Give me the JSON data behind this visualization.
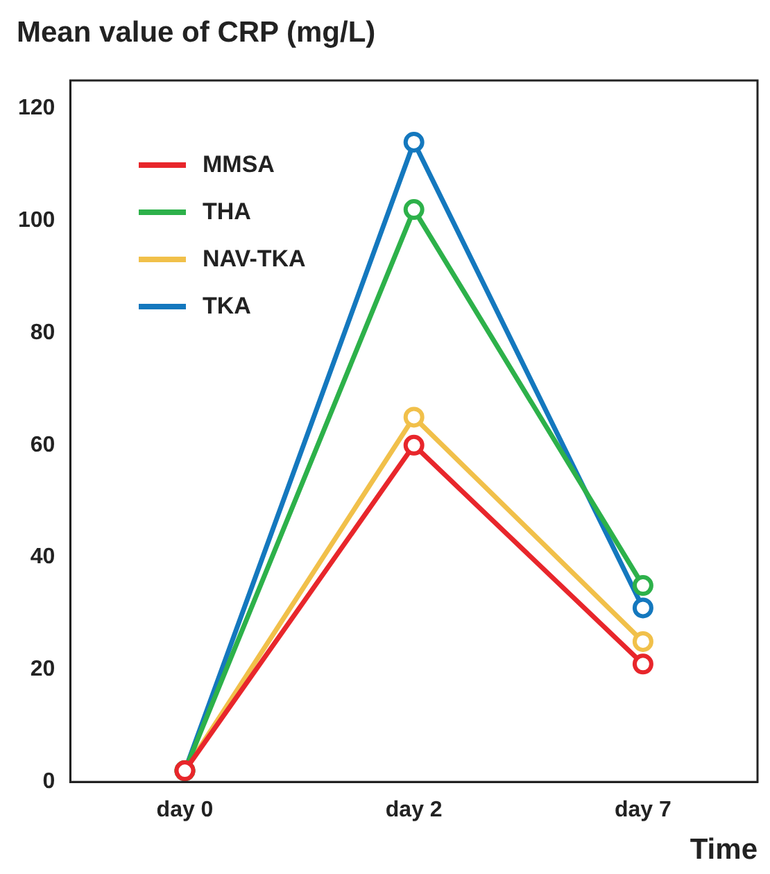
{
  "chart_data": {
    "type": "line",
    "title": "Mean value of CRP (mg/L)",
    "xlabel": "Time",
    "categories": [
      "day 0",
      "day 2",
      "day 7"
    ],
    "series": [
      {
        "name": "MMSA",
        "color": "#e8262b",
        "values": [
          2,
          60,
          21
        ]
      },
      {
        "name": "THA",
        "color": "#2db14a",
        "values": [
          2,
          102,
          35
        ]
      },
      {
        "name": "NAV-TKA",
        "color": "#f1c04a",
        "values": [
          2,
          65,
          25
        ]
      },
      {
        "name": "TKA",
        "color": "#1478be",
        "values": [
          2,
          114,
          31
        ]
      }
    ],
    "ylim": [
      0,
      125
    ],
    "yticks": [
      0,
      20,
      40,
      60,
      80,
      100,
      120
    ],
    "grid": false,
    "legend": "top left",
    "marker": "circle",
    "line_style": "solid"
  }
}
